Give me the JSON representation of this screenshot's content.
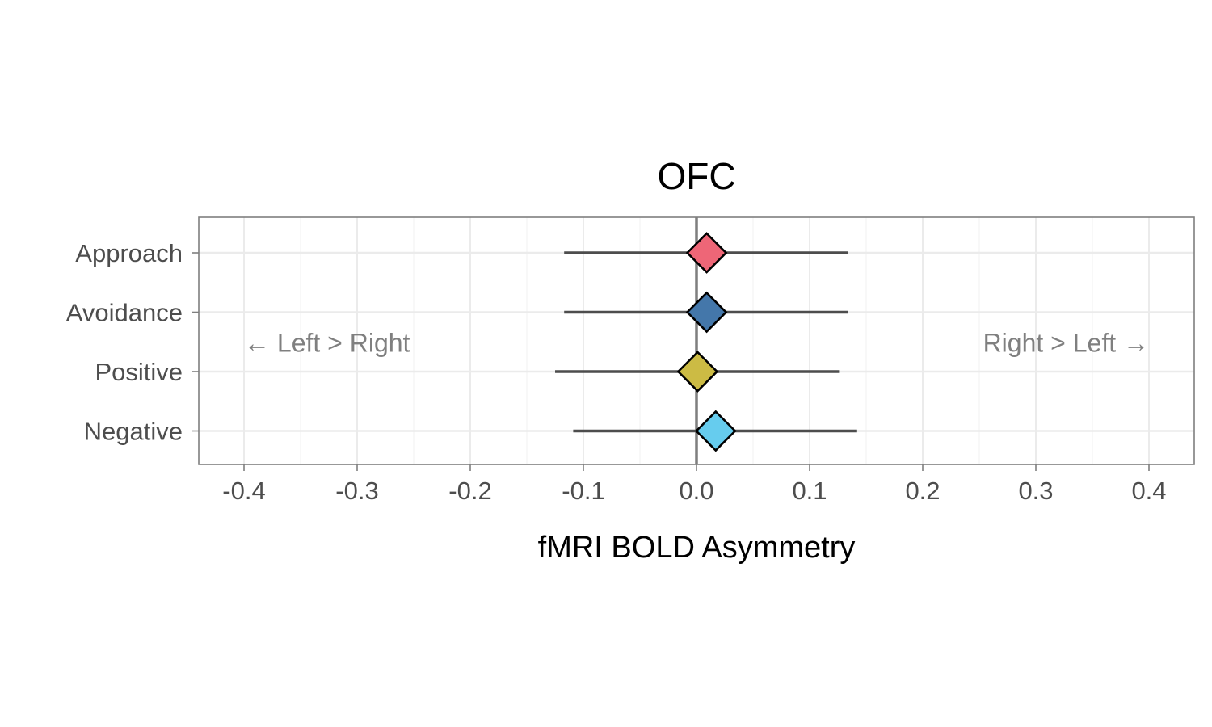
{
  "chart_data": {
    "type": "forest",
    "title": "OFC",
    "xlabel": "fMRI BOLD Asymmetry",
    "ylabel": "",
    "xlim": [
      -0.44,
      0.44
    ],
    "x_ticks": [
      -0.4,
      -0.3,
      -0.2,
      -0.1,
      0.0,
      0.1,
      0.2,
      0.3,
      0.4
    ],
    "x_tick_labels": [
      "-0.4",
      "-0.3",
      "-0.2",
      "-0.1",
      "0.0",
      "0.1",
      "0.2",
      "0.3",
      "0.4"
    ],
    "reference_line": 0.0,
    "grid": true,
    "categories": [
      "Approach",
      "Avoidance",
      "Positive",
      "Negative"
    ],
    "series": [
      {
        "category": "Approach",
        "estimate": 0.009,
        "lower": -0.117,
        "upper": 0.134,
        "color": "#EE6677"
      },
      {
        "category": "Avoidance",
        "estimate": 0.009,
        "lower": -0.117,
        "upper": 0.134,
        "color": "#4477AA"
      },
      {
        "category": "Positive",
        "estimate": 0.001,
        "lower": -0.125,
        "upper": 0.126,
        "color": "#CCBB44"
      },
      {
        "category": "Negative",
        "estimate": 0.017,
        "lower": -0.109,
        "upper": 0.142,
        "color": "#66CCEE"
      }
    ],
    "annotations": [
      {
        "text": "← Left > Right",
        "x": -0.4
      },
      {
        "text": "Right > Left →",
        "x": 0.4
      }
    ]
  }
}
